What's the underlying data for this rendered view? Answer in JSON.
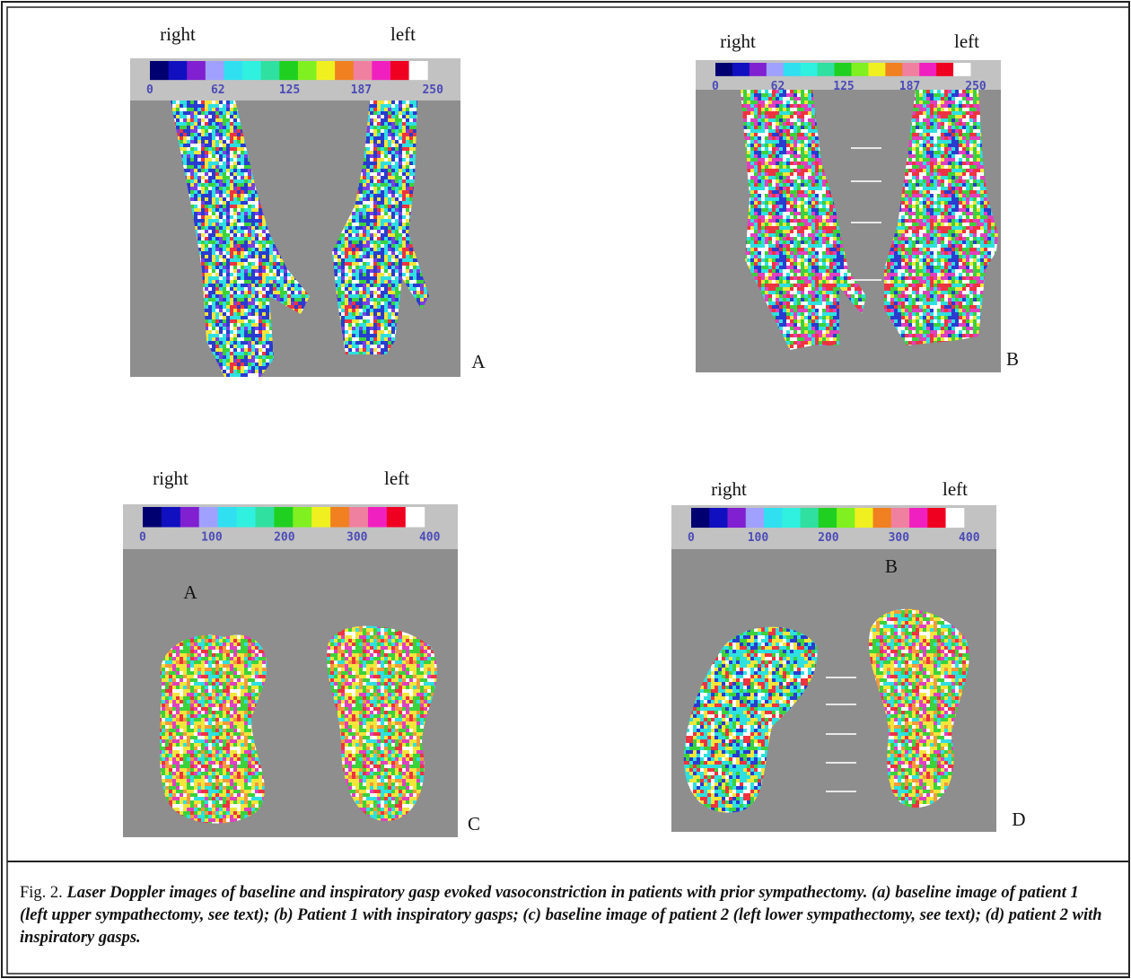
{
  "panels": [
    {
      "left_label": "right",
      "right_label": "left",
      "scale_ticks": [
        "0",
        "62",
        "125",
        "187",
        "250"
      ],
      "panel_letter": "A"
    },
    {
      "left_label": "right",
      "right_label": "left",
      "scale_ticks": [
        "0",
        "62",
        "125",
        "187",
        "250"
      ],
      "panel_letter": "B"
    },
    {
      "left_label": "right",
      "right_label": "left",
      "scale_ticks": [
        "0",
        "100",
        "200",
        "300",
        "400"
      ],
      "panel_letter": "C",
      "inner_label": "A"
    },
    {
      "left_label": "right",
      "right_label": "left",
      "scale_ticks": [
        "0",
        "100",
        "200",
        "300",
        "400"
      ],
      "panel_letter": "D",
      "inner_label": "B"
    }
  ],
  "caption": {
    "prefix": "Fig. 2.",
    "text": "Laser Doppler images of baseline and inspiratory gasp evoked vasoconstriction in patients with prior sympathectomy. (a) baseline image of patient 1 (left upper sympathectomy, see text); (b) Patient 1 with inspiratory gasps; (c) baseline image of patient 2 (left lower sympathectomy, see text); (d) patient 2 with inspiratory gasps."
  }
}
